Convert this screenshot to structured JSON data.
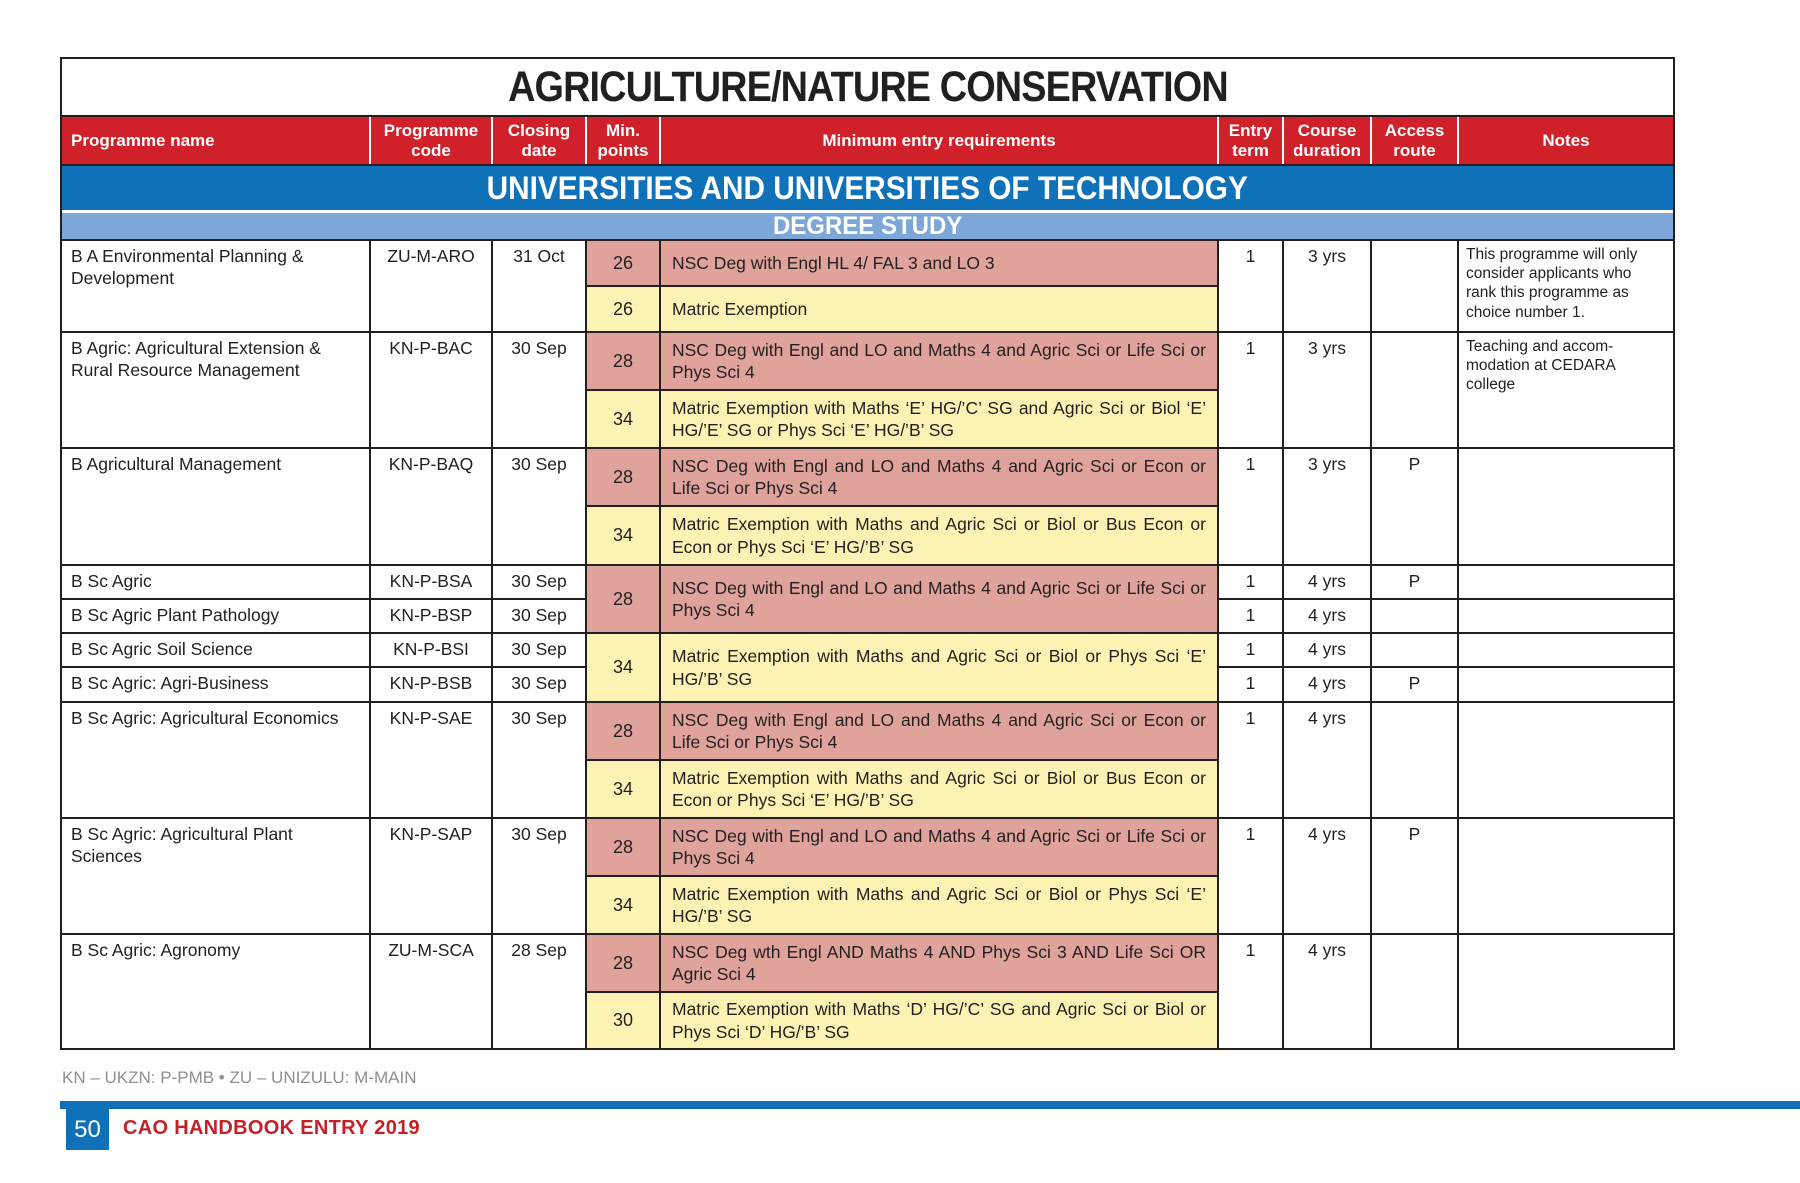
{
  "page": {
    "title": "AGRICULTURE/NATURE CONSERVATION",
    "section_banner": "UNIVERSITIES AND UNIVERSITIES OF TECHNOLOGY",
    "subsection_banner": "DEGREE STUDY",
    "footnote": "KN – UKZN: P-PMB  • ZU – UNIZULU: M-MAIN",
    "page_number": "50",
    "handbook_label": "CAO HANDBOOK ENTRY 2019"
  },
  "colors": {
    "header_red": "#d0202a",
    "banner_blue": "#0f72b9",
    "banner_light_blue": "#7da7d8",
    "req_pink": "#dfa39c",
    "req_yellow": "#fbf2b4",
    "ink": "#231f20",
    "footnote_gray": "#8d8f92",
    "cao_red": "#c32027"
  },
  "table": {
    "columns": [
      "Programme name",
      "Programme code",
      "Closing date",
      "Min. points",
      "Minimum entry requirements",
      "Entry term",
      "Course duration",
      "Access route",
      "Notes"
    ],
    "group_requirements": [
      {
        "points": "28",
        "text": "NSC Deg with Engl and LO and Maths 4 and Agric Sci or Life Sci or Phys Sci 4"
      },
      {
        "points": "34",
        "text": "Matric Exemption with Maths and Agric Sci or Biol or Phys Sci ‘E’ HG/’B’ SG"
      }
    ],
    "programmes": [
      {
        "name": "B A Environmental Planning & Development",
        "code": "ZU-M-ARO",
        "closing": "31 Oct",
        "entry_term": "1",
        "duration": "3 yrs",
        "access": "",
        "note": "This programme will only\nconsider applicants who\nrank this programme as\nchoice number 1.",
        "reqs": [
          {
            "points": "26",
            "text": "NSC Deg with Engl HL 4/ FAL 3 and LO 3"
          },
          {
            "points": "26",
            "text": "Matric Exemption"
          }
        ]
      },
      {
        "name": "B Agric: Agricultural Extension & Rural Resource Management",
        "code": "KN-P-BAC",
        "closing": "30 Sep",
        "entry_term": "1",
        "duration": "3 yrs",
        "access": "",
        "note": "Teaching and accom-\nmodation at CEDARA\ncollege",
        "reqs": [
          {
            "points": "28",
            "text": "NSC Deg with Engl and LO and Maths 4 and Agric Sci or Life Sci or Phys Sci 4"
          },
          {
            "points": "34",
            "text": "Matric Exemption with Maths ‘E’ HG/’C’ SG and Agric Sci or Biol ‘E’ HG/’E’ SG or Phys Sci ‘E’ HG/’B’ SG"
          }
        ]
      },
      {
        "name": "B Agricultural Management",
        "code": "KN-P-BAQ",
        "closing": "30 Sep",
        "entry_term": "1",
        "duration": "3 yrs",
        "access": "P",
        "note": "",
        "reqs": [
          {
            "points": "28",
            "text": "NSC Deg with Engl and LO and Maths 4 and Agric Sci or Econ or Life Sci or Phys Sci 4"
          },
          {
            "points": "34",
            "text": "Matric Exemption with Maths and Agric Sci or Biol or Bus Econ or Econ or Phys Sci ‘E’ HG/’B’ SG"
          }
        ]
      },
      {
        "name": "B Sc Agric",
        "code": "KN-P-BSA",
        "closing": "30 Sep",
        "entry_term": "1",
        "duration": "4 yrs",
        "access": "P",
        "note": ""
      },
      {
        "name": "B Sc Agric Plant Pathology",
        "code": "KN-P-BSP",
        "closing": "30 Sep",
        "entry_term": "1",
        "duration": "4 yrs",
        "access": "",
        "note": ""
      },
      {
        "name": "B Sc Agric Soil Science",
        "code": "KN-P-BSI",
        "closing": "30 Sep",
        "entry_term": "1",
        "duration": "4 yrs",
        "access": "",
        "note": ""
      },
      {
        "name": "B Sc Agric: Agri-Business",
        "code": "KN-P-BSB",
        "closing": "30 Sep",
        "entry_term": "1",
        "duration": "4 yrs",
        "access": "P",
        "note": ""
      },
      {
        "name": "B Sc Agric: Agricultural Economics",
        "code": "KN-P-SAE",
        "closing": "30 Sep",
        "entry_term": "1",
        "duration": "4 yrs",
        "access": "",
        "note": "",
        "reqs": [
          {
            "points": "28",
            "text": "NSC Deg with Engl and LO and Maths 4 and Agric Sci or Econ or Life Sci or Phys Sci 4"
          },
          {
            "points": "34",
            "text": "Matric Exemption with Maths and Agric Sci or Biol or Bus Econ or Econ or Phys Sci ‘E’ HG/’B’ SG"
          }
        ]
      },
      {
        "name": "B Sc Agric: Agricultural Plant Sciences",
        "code": "KN-P-SAP",
        "closing": "30 Sep",
        "entry_term": "1",
        "duration": "4 yrs",
        "access": "P",
        "note": "",
        "reqs": [
          {
            "points": "28",
            "text": "NSC Deg with Engl and LO and Maths 4 and Agric Sci or Life Sci or Phys Sci 4"
          },
          {
            "points": "34",
            "text": "Matric Exemption with Maths and Agric Sci or Biol or Phys Sci ‘E’ HG/’B’ SG"
          }
        ]
      },
      {
        "name": "B Sc Agric: Agronomy",
        "code": "ZU-M-SCA",
        "closing": "28 Sep",
        "entry_term": "1",
        "duration": "4 yrs",
        "access": "",
        "note": "",
        "reqs": [
          {
            "points": "28",
            "text": "NSC Deg wth Engl AND Maths 4 AND Phys Sci 3 AND Life Sci OR Agric Sci 4"
          },
          {
            "points": "30",
            "text": "Matric Exemption with Maths ‘D’ HG/’C’ SG and Agric Sci or Biol or Phys Sci ‘D’ HG/’B’ SG"
          }
        ]
      }
    ]
  }
}
